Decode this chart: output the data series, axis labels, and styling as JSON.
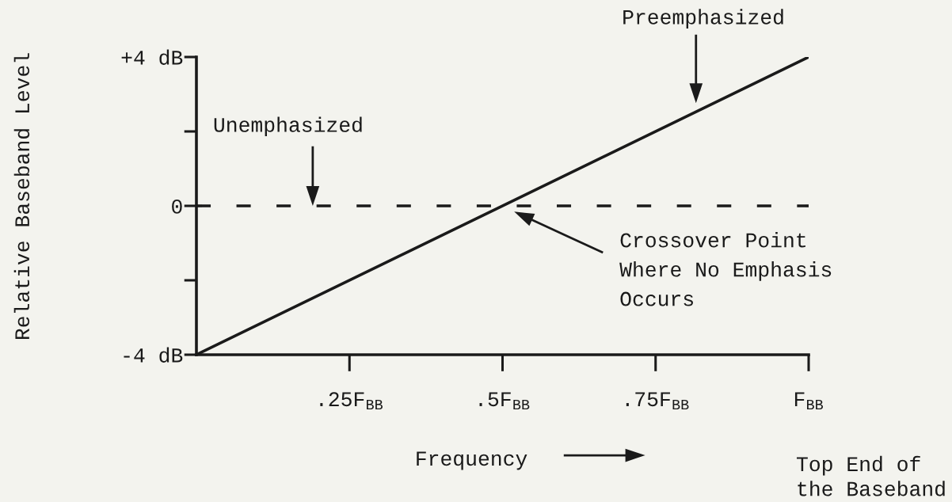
{
  "chart_data": {
    "type": "line",
    "xlabel": "Frequency",
    "ylabel": "Relative Baseband Level",
    "x": [
      0,
      1
    ],
    "series": [
      {
        "color": "#1a1a1a",
        "values": [
          -4,
          4
        ]
      }
    ],
    "xlim": [
      0,
      1
    ],
    "ylim": [
      -4,
      4
    ],
    "xticks": [
      {
        "value": 0.25,
        "label": ".25F$_{BB}$"
      },
      {
        "value": 0.5,
        "label": ".5F$_{BB}$"
      },
      {
        "value": 0.75,
        "label": ".75F$_{BB}$"
      },
      {
        "value": 1,
        "label": "F$_{BB}$"
      }
    ],
    "yticks": [
      {
        "value": -4,
        "label": "-4 dB"
      },
      {
        "value": -2,
        "label": null
      },
      0,
      {
        "value": 2,
        "label": null
      },
      {
        "value": 4,
        "label": "+4 dB"
      }
    ],
    "ref_lines": [
      {
        "axis": "y",
        "value": 0,
        "line_style": "dashed",
        "color": "#1a1a1a"
      }
    ],
    "annotations": [
      "Unemphasized",
      "Preemphasized",
      "Crossover Point\nWhere No Emphasis\nOccurs",
      "Top End of\nthe Baseband"
    ],
    "grid": false,
    "marker": "none",
    "line_style": "solid"
  }
}
